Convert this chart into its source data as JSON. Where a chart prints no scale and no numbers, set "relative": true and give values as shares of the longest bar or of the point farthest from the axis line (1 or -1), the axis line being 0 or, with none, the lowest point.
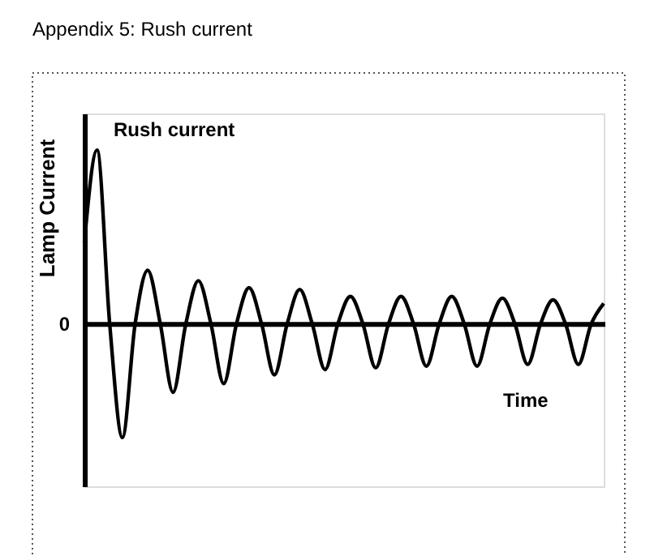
{
  "chart_data": {
    "type": "line",
    "relative": true,
    "title": "Appendix 5: Rush current",
    "xlabel": "Time",
    "ylabel": "Lamp Current",
    "annotations": [
      "Rush current",
      "0"
    ],
    "categories": [
      null,
      null,
      null,
      null,
      null,
      null,
      null,
      null,
      null,
      null,
      null,
      null,
      null,
      null,
      null,
      null,
      null,
      null,
      null,
      null,
      null,
      null,
      null,
      null,
      null,
      null,
      null,
      null,
      null,
      null,
      null,
      null,
      null,
      null,
      null,
      null,
      null,
      null,
      null,
      null,
      null,
      null
    ],
    "series": [
      {
        "color": "#000000",
        "values": [
          0.47,
          1.0,
          0,
          -0.65,
          0,
          0.31,
          0,
          -0.39,
          0,
          0.25,
          0,
          -0.34,
          0,
          0.21,
          0,
          -0.29,
          0,
          0.2,
          0,
          -0.26,
          0,
          0.16,
          0,
          -0.25,
          0,
          0.16,
          0,
          -0.24,
          0,
          0.16,
          0,
          -0.24,
          0,
          0.15,
          0,
          -0.23,
          0,
          0.14,
          0,
          -0.23,
          0,
          0.12
        ]
      }
    ],
    "grid": false,
    "marker": "none",
    "line_style": "solid"
  }
}
